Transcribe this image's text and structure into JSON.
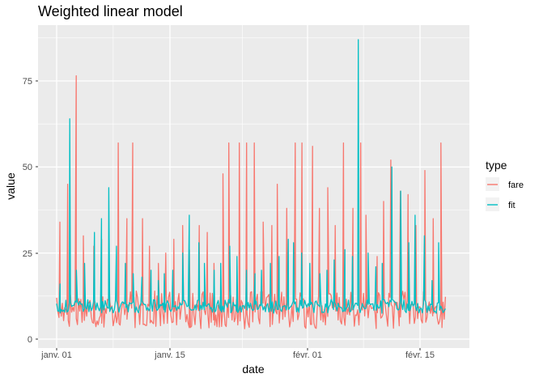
{
  "chart_data": {
    "type": "line",
    "title": "Weighted linear model",
    "xlabel": "date",
    "ylabel": "value",
    "x_ticks": [
      "janv. 01",
      "janv. 15",
      "févr. 01",
      "févr. 15"
    ],
    "y_ticks": [
      "0",
      "25",
      "50",
      "75"
    ],
    "xlim": [
      "2018-01-01",
      "2018-02-19"
    ],
    "ylim": [
      0,
      87
    ],
    "grid": true,
    "background": "#ebebeb",
    "legend": {
      "title": "type",
      "position": "right"
    },
    "series": [
      {
        "name": "fare",
        "color": "#f8766d",
        "x": [
          "2018-01-01",
          "2018-01-02",
          "2018-01-03",
          "2018-01-04",
          "2018-01-05",
          "2018-01-06",
          "2018-01-07",
          "2018-01-08",
          "2018-01-09",
          "2018-01-10",
          "2018-01-11",
          "2018-01-12",
          "2018-01-13",
          "2018-01-14",
          "2018-01-15",
          "2018-01-16",
          "2018-01-17",
          "2018-01-18",
          "2018-01-19",
          "2018-01-20",
          "2018-01-21",
          "2018-01-22",
          "2018-01-23",
          "2018-01-24",
          "2018-01-25",
          "2018-01-26",
          "2018-01-27",
          "2018-01-28",
          "2018-01-29",
          "2018-01-30",
          "2018-01-31",
          "2018-02-01",
          "2018-02-02",
          "2018-02-03",
          "2018-02-04",
          "2018-02-05",
          "2018-02-06",
          "2018-02-07",
          "2018-02-08",
          "2018-02-09",
          "2018-02-10",
          "2018-02-11",
          "2018-02-12",
          "2018-02-13",
          "2018-02-14",
          "2018-02-15",
          "2018-02-16",
          "2018-02-17",
          "2018-02-18"
        ],
        "values": [
          34,
          45,
          76.5,
          30,
          27,
          29,
          23,
          57,
          35,
          57,
          35,
          27,
          22,
          25,
          29,
          33,
          26,
          33,
          31,
          22,
          48,
          57,
          57,
          57,
          57,
          34,
          33,
          45,
          38,
          57,
          57,
          56,
          38,
          44,
          33,
          57,
          38,
          57,
          36,
          24,
          40,
          52,
          43,
          42,
          33,
          49,
          35,
          57,
          57
        ]
      },
      {
        "name": "fit",
        "color": "#00bfc4",
        "x": [
          "2018-01-01",
          "2018-01-02",
          "2018-01-03",
          "2018-01-04",
          "2018-01-05",
          "2018-01-06",
          "2018-01-07",
          "2018-01-08",
          "2018-01-09",
          "2018-01-10",
          "2018-01-11",
          "2018-01-12",
          "2018-01-13",
          "2018-01-14",
          "2018-01-15",
          "2018-01-16",
          "2018-01-17",
          "2018-01-18",
          "2018-01-19",
          "2018-01-20",
          "2018-01-21",
          "2018-01-22",
          "2018-01-23",
          "2018-01-24",
          "2018-01-25",
          "2018-01-26",
          "2018-01-27",
          "2018-01-28",
          "2018-01-29",
          "2018-01-30",
          "2018-01-31",
          "2018-02-01",
          "2018-02-02",
          "2018-02-03",
          "2018-02-04",
          "2018-02-05",
          "2018-02-06",
          "2018-02-07",
          "2018-02-08",
          "2018-02-09",
          "2018-02-10",
          "2018-02-11",
          "2018-02-12",
          "2018-02-13",
          "2018-02-14",
          "2018-02-15",
          "2018-02-16",
          "2018-02-17",
          "2018-02-18"
        ],
        "values": [
          16,
          64,
          20,
          22,
          31,
          35,
          44,
          27,
          22,
          19,
          18,
          20,
          17,
          19,
          20,
          25,
          36,
          28,
          22,
          20,
          22,
          27,
          24,
          20,
          19,
          20,
          22,
          24,
          29,
          28,
          25,
          22,
          19,
          20,
          23,
          26,
          24,
          87,
          25,
          21,
          22,
          50,
          43,
          28,
          36,
          30,
          17,
          28,
          12
        ]
      }
    ]
  }
}
